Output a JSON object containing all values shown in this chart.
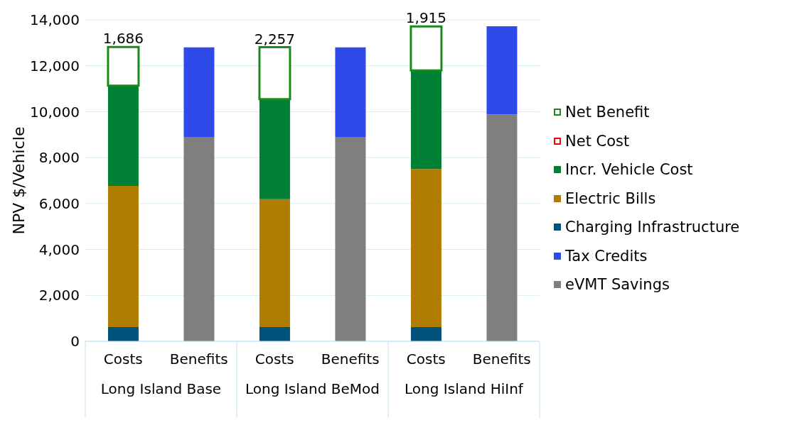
{
  "chart_data": {
    "type": "bar",
    "stacked": true,
    "ylabel": "NPV $/Vehicle",
    "categories": [
      "Costs",
      "Benefits",
      "Costs",
      "Benefits",
      "Costs",
      "Benefits"
    ],
    "annotations": [
      "Long Island Base",
      "Long Island BeMod",
      "Long Island HiInf"
    ],
    "series": [
      {
        "name": "eVMT Savings",
        "color": "#7f7f7f",
        "values": [
          null,
          8900,
          null,
          8900,
          null,
          9880
        ]
      },
      {
        "name": "Tax Credits",
        "color": "#2e4bea",
        "values": [
          null,
          3900,
          null,
          3900,
          null,
          3840
        ]
      },
      {
        "name": "Charging Infrastructure",
        "color": "#00527a",
        "values": [
          620,
          null,
          620,
          null,
          620,
          null
        ]
      },
      {
        "name": "Electric Bills",
        "color": "#b07d00",
        "values": [
          6150,
          null,
          5570,
          null,
          6880,
          null
        ]
      },
      {
        "name": "Incr. Vehicle Cost",
        "color": "#008035",
        "values": [
          4360,
          null,
          4360,
          null,
          4300,
          null
        ]
      },
      {
        "name": "Net Cost",
        "color": "#ff0000",
        "line_style": "solid",
        "values": [
          null,
          null,
          null,
          null,
          null,
          null
        ]
      },
      {
        "name": "Net Benefit",
        "color": "#1a8a1a",
        "line_style": "solid",
        "values": [
          1686,
          null,
          2257,
          null,
          1915,
          null
        ],
        "value_labels": [
          "1,686",
          null,
          "2,257",
          null,
          "1,915",
          null
        ]
      }
    ],
    "ylim": [
      0,
      14000
    ],
    "yticks": [
      0,
      {
        "value": 2000,
        "label": "2,000"
      },
      {
        "value": 4000,
        "label": "4,000"
      },
      {
        "value": 6000,
        "label": "6,000"
      },
      {
        "value": 8000,
        "label": "8,000"
      },
      {
        "value": 10000,
        "label": "10,000"
      },
      {
        "value": 12000,
        "label": "12,000"
      },
      {
        "value": 14000,
        "label": "14,000"
      }
    ],
    "grid": "y",
    "legend": "right"
  }
}
